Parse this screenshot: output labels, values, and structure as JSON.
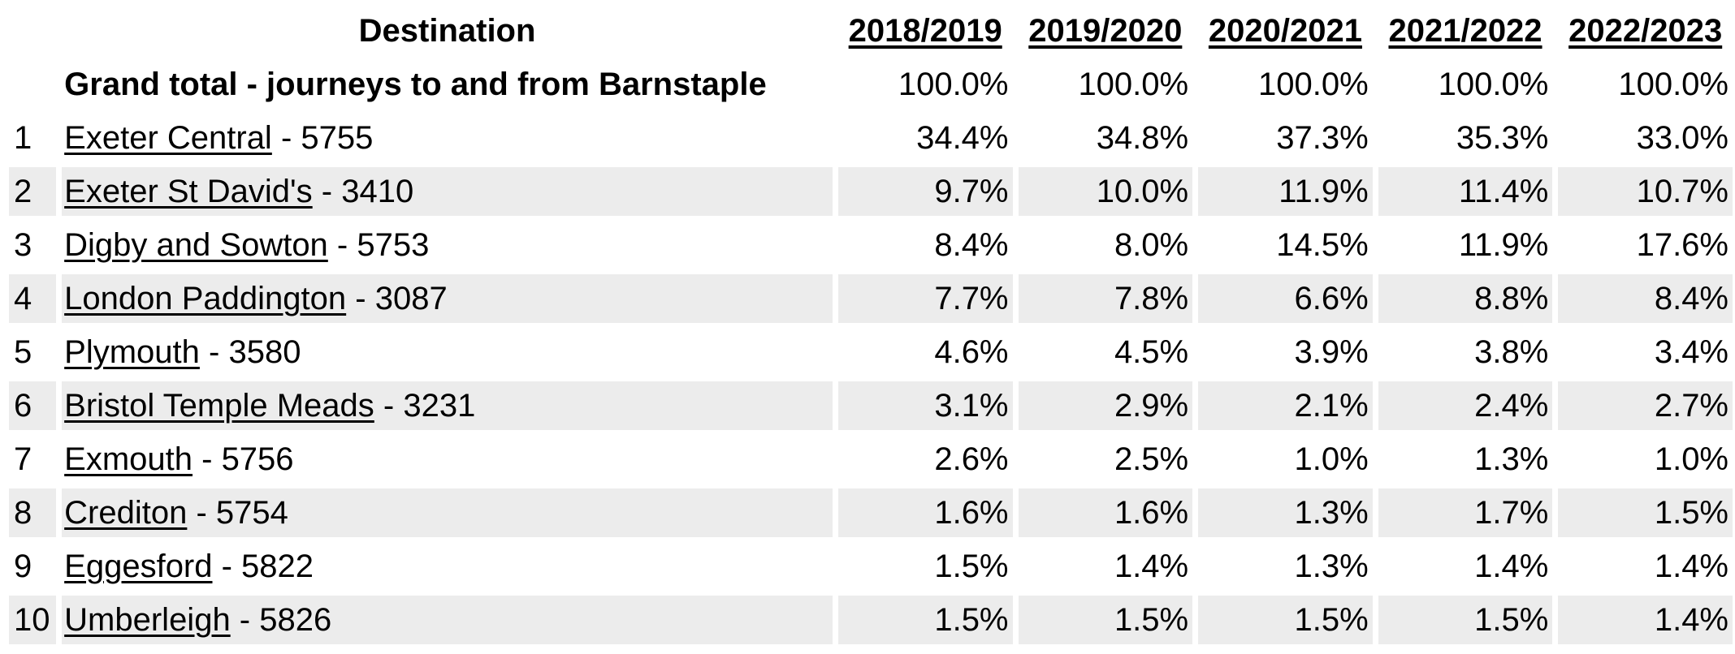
{
  "header": {
    "destination_label": "Destination",
    "years": [
      "2018/2019",
      "2019/2020",
      "2020/2021",
      "2021/2022",
      "2022/2023"
    ]
  },
  "grand_total": {
    "label": "Grand total - journeys to and from Barnstaple",
    "values": [
      "100.0%",
      "100.0%",
      "100.0%",
      "100.0%",
      "100.0%"
    ]
  },
  "rows": [
    {
      "rank": "1",
      "station": "Exeter Central",
      "suffix": " - 5755",
      "values": [
        "34.4%",
        "34.8%",
        "37.3%",
        "35.3%",
        "33.0%"
      ]
    },
    {
      "rank": "2",
      "station": "Exeter St David's",
      "suffix": " - 3410",
      "values": [
        "9.7%",
        "10.0%",
        "11.9%",
        "11.4%",
        "10.7%"
      ]
    },
    {
      "rank": "3",
      "station": "Digby and Sowton",
      "suffix": " - 5753",
      "values": [
        "8.4%",
        "8.0%",
        "14.5%",
        "11.9%",
        "17.6%"
      ]
    },
    {
      "rank": "4",
      "station": "London Paddington",
      "suffix": " - 3087",
      "values": [
        "7.7%",
        "7.8%",
        "6.6%",
        "8.8%",
        "8.4%"
      ]
    },
    {
      "rank": "5",
      "station": "Plymouth",
      "suffix": " - 3580",
      "values": [
        "4.6%",
        "4.5%",
        "3.9%",
        "3.8%",
        "3.4%"
      ]
    },
    {
      "rank": "6",
      "station": "Bristol Temple Meads",
      "suffix": " - 3231",
      "values": [
        "3.1%",
        "2.9%",
        "2.1%",
        "2.4%",
        "2.7%"
      ]
    },
    {
      "rank": "7",
      "station": "Exmouth",
      "suffix": " - 5756",
      "values": [
        "2.6%",
        "2.5%",
        "1.0%",
        "1.3%",
        "1.0%"
      ]
    },
    {
      "rank": "8",
      "station": "Crediton",
      "suffix": " - 5754",
      "values": [
        "1.6%",
        "1.6%",
        "1.3%",
        "1.7%",
        "1.5%"
      ]
    },
    {
      "rank": "9",
      "station": "Eggesford",
      "suffix": " - 5822",
      "values": [
        "1.5%",
        "1.4%",
        "1.3%",
        "1.4%",
        "1.4%"
      ]
    },
    {
      "rank": "10",
      "station": "Umberleigh",
      "suffix": " - 5826",
      "values": [
        "1.5%",
        "1.5%",
        "1.5%",
        "1.5%",
        "1.4%"
      ]
    }
  ],
  "colors": {
    "stripe": "#ececec",
    "text": "#000000",
    "background": "#ffffff"
  },
  "chart_data": {
    "type": "table",
    "title": "Destination share of journeys to and from Barnstaple",
    "categories": [
      "2018/2019",
      "2019/2020",
      "2020/2021",
      "2021/2022",
      "2022/2023"
    ],
    "unit": "%",
    "series": [
      {
        "name": "Grand total - journeys to and from Barnstaple",
        "values": [
          100.0,
          100.0,
          100.0,
          100.0,
          100.0
        ]
      },
      {
        "name": "Exeter Central - 5755",
        "values": [
          34.4,
          34.8,
          37.3,
          35.3,
          33.0
        ]
      },
      {
        "name": "Exeter St David's - 3410",
        "values": [
          9.7,
          10.0,
          11.9,
          11.4,
          10.7
        ]
      },
      {
        "name": "Digby and Sowton - 5753",
        "values": [
          8.4,
          8.0,
          14.5,
          11.9,
          17.6
        ]
      },
      {
        "name": "London Paddington - 3087",
        "values": [
          7.7,
          7.8,
          6.6,
          8.8,
          8.4
        ]
      },
      {
        "name": "Plymouth - 3580",
        "values": [
          4.6,
          4.5,
          3.9,
          3.8,
          3.4
        ]
      },
      {
        "name": "Bristol Temple Meads - 3231",
        "values": [
          3.1,
          2.9,
          2.1,
          2.4,
          2.7
        ]
      },
      {
        "name": "Exmouth - 5756",
        "values": [
          2.6,
          2.5,
          1.0,
          1.3,
          1.0
        ]
      },
      {
        "name": "Crediton - 5754",
        "values": [
          1.6,
          1.6,
          1.3,
          1.7,
          1.5
        ]
      },
      {
        "name": "Eggesford - 5822",
        "values": [
          1.5,
          1.4,
          1.3,
          1.4,
          1.4
        ]
      },
      {
        "name": "Umberleigh - 5826",
        "values": [
          1.5,
          1.5,
          1.5,
          1.5,
          1.4
        ]
      }
    ],
    "layout": {
      "row_stripes": true,
      "value_alignment": "right",
      "rank_column": true
    }
  }
}
